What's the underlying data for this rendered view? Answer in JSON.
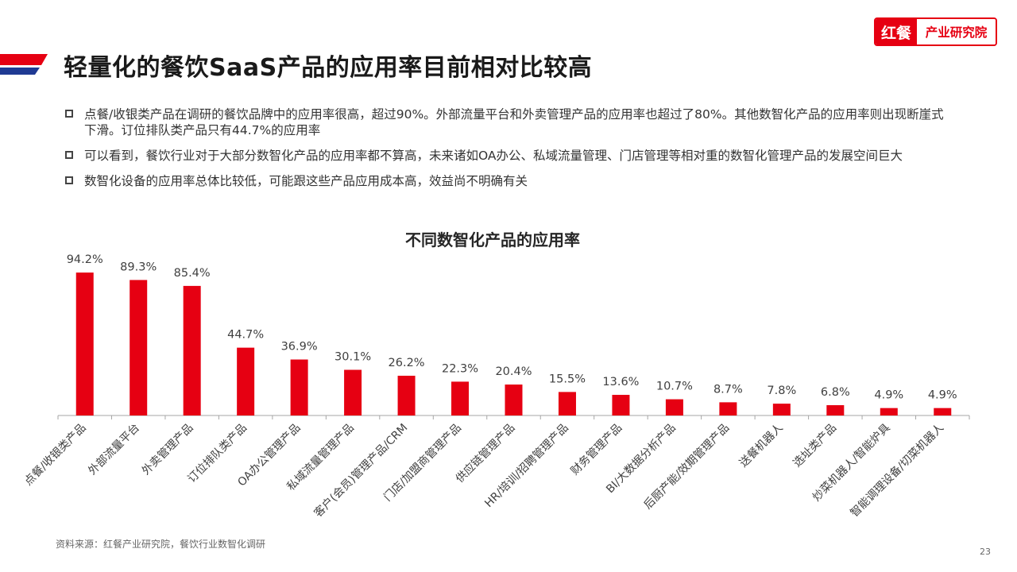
{
  "title": "轻量化的餐饮SaaS产品的应用率目前相对比较高",
  "logo": {
    "mark": "红餐",
    "text": "产业研究院"
  },
  "bullets": [
    "点餐/收银类产品在调研的餐饮品牌中的应用率很高，超过90%。外部流量平台和外卖管理产品的应用率也超过了80%。其他数智化产品的应用率则出现断崖式下滑。订位排队类产品只有44.7%的应用率",
    "可以看到，餐饮行业对于大部分数智化产品的应用率都不算高，未来诸如OA办公、私域流量管理、门店管理等相对重的数智化管理产品的发展空间巨大",
    "数智化设备的应用率总体比较低，可能跟这些产品应用成本高，效益尚不明确有关"
  ],
  "chart_data": {
    "type": "bar",
    "title": "不同数智化产品的应用率",
    "categories": [
      "点餐/收银类产品",
      "外部流量平台",
      "外卖管理产品",
      "订位排队类产品",
      "OA办公管理产品",
      "私域流量管理产品",
      "客户(会员)管理产品/CRM",
      "门店/加盟商管理产品",
      "供应链管理产品",
      "HR/培训/招聘管理产品",
      "财务管理产品",
      "BI/大数据分析产品",
      "后厨产能/效期管理产品",
      "送餐机器人",
      "选址类产品",
      "炒菜机器人/智能炉具",
      "智能调理设备/切菜机器人"
    ],
    "values": [
      94.2,
      89.3,
      85.4,
      44.7,
      36.9,
      30.1,
      26.2,
      22.3,
      20.4,
      15.5,
      13.6,
      10.7,
      8.7,
      7.8,
      6.8,
      4.9,
      4.9
    ],
    "labels": [
      "94.2%",
      "89.3%",
      "85.4%",
      "44.7%",
      "36.9%",
      "30.1%",
      "26.2%",
      "22.3%",
      "20.4%",
      "15.5%",
      "13.6%",
      "10.7%",
      "8.7%",
      "7.8%",
      "6.8%",
      "4.9%",
      "4.9%"
    ],
    "bar_color": "#e60012",
    "ylim": [
      0,
      100
    ],
    "grid": false
  },
  "source": "资料来源：红餐产业研究院，餐饮行业数智化调研",
  "page_number": "23",
  "colors": {
    "accent": "#e60012",
    "secondary": "#1f3a93"
  }
}
